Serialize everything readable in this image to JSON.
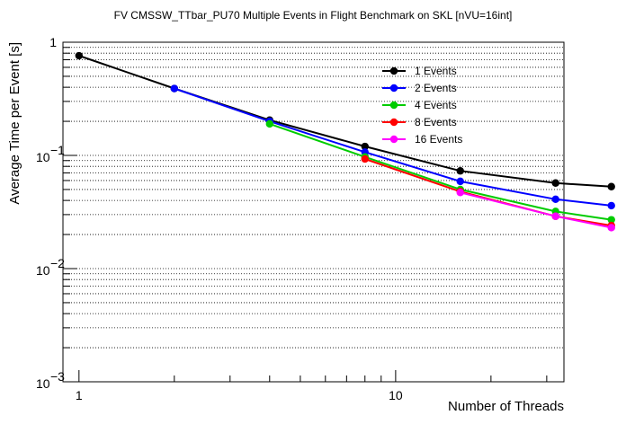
{
  "chart_data": {
    "type": "line",
    "title": "FV CMSSW_TTbar_PU70 Multiple Events in Flight Benchmark on SKL [nVU=16int]",
    "xlabel": "Number of Threads",
    "ylabel": "Average Time per Event [s]",
    "xscale": "log",
    "yscale": "log",
    "xlim": [
      0.89,
      34
    ],
    "ylim": [
      0.001,
      1
    ],
    "grid": "horizontal dotted",
    "legend_placement": "top-right",
    "x_ticks": [
      {
        "value": 1,
        "label": "1"
      },
      {
        "value": 10,
        "label": "10"
      }
    ],
    "y_ticks": [
      {
        "value": 0.001,
        "base": "10",
        "exp": "−3"
      },
      {
        "value": 0.01,
        "base": "10",
        "exp": "−2"
      },
      {
        "value": 0.1,
        "base": "10",
        "exp": "−1"
      },
      {
        "value": 1,
        "base": "1",
        "exp": ""
      }
    ],
    "series": [
      {
        "name": "1 Events",
        "color": "#000000",
        "x": [
          1,
          2,
          4,
          8,
          16,
          32,
          48
        ],
        "values": [
          0.76,
          0.39,
          0.205,
          0.12,
          0.073,
          0.057,
          0.053
        ]
      },
      {
        "name": "2 Events",
        "color": "#0000ff",
        "x": [
          2,
          4,
          8,
          16,
          32,
          48
        ],
        "values": [
          0.39,
          0.2,
          0.107,
          0.059,
          0.041,
          0.036
        ]
      },
      {
        "name": "4 Events",
        "color": "#00cc00",
        "x": [
          4,
          8,
          16,
          32,
          48
        ],
        "values": [
          0.19,
          0.097,
          0.05,
          0.032,
          0.027
        ]
      },
      {
        "name": "8 Events",
        "color": "#ff0000",
        "x": [
          8,
          16,
          32,
          48
        ],
        "values": [
          0.093,
          0.048,
          0.029,
          0.024
        ]
      },
      {
        "name": "16 Events",
        "color": "#ff00ff",
        "x": [
          16,
          32,
          48
        ],
        "values": [
          0.047,
          0.029,
          0.023
        ]
      }
    ]
  }
}
